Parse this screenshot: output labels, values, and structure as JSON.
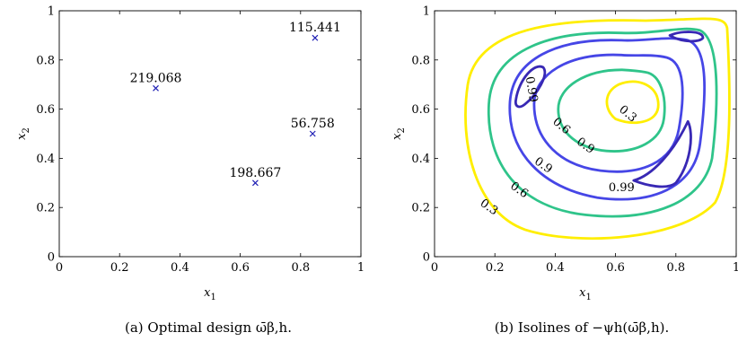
{
  "chart_data": [
    {
      "type": "scatter",
      "title": "",
      "xlabel": "x1",
      "ylabel": "x2",
      "xlim": [
        0,
        1
      ],
      "ylim": [
        0,
        1
      ],
      "xticks": [
        "0",
        "0.2",
        "0.4",
        "0.6",
        "0.8",
        "1"
      ],
      "yticks": [
        "0",
        "0.2",
        "0.4",
        "0.6",
        "0.8",
        "1"
      ],
      "grid": false,
      "marker": "x",
      "marker_color": "#1f1fb4",
      "points": [
        {
          "x": 0.32,
          "y": 0.685,
          "label": "219.068"
        },
        {
          "x": 0.848,
          "y": 0.89,
          "label": "115.441"
        },
        {
          "x": 0.84,
          "y": 0.5,
          "label": "56.758"
        },
        {
          "x": 0.65,
          "y": 0.3,
          "label": "198.667"
        }
      ],
      "caption": "(a) Optimal design ω̄β,h."
    },
    {
      "type": "contour",
      "title": "",
      "xlabel": "x1",
      "ylabel": "x2",
      "xlim": [
        0,
        1
      ],
      "ylim": [
        0,
        1
      ],
      "xticks": [
        "0",
        "0.2",
        "0.4",
        "0.6",
        "0.8",
        "1"
      ],
      "yticks": [
        "0",
        "0.2",
        "0.4",
        "0.6",
        "0.8",
        "1"
      ],
      "grid": false,
      "levels": [
        {
          "value": 0.3,
          "label": "0.3",
          "color": "#ffee00"
        },
        {
          "value": 0.6,
          "label": "0.6",
          "color": "#2fc48a"
        },
        {
          "value": 0.9,
          "label": "0.9",
          "color": "#4646e6"
        },
        {
          "value": 0.99,
          "label": "0.99",
          "color": "#3828b4"
        }
      ],
      "caption": "(b) Isolines of −ψh(ω̄β,h)."
    }
  ],
  "labels": {
    "x_main": "x",
    "x_sub": "1",
    "y_main": "x",
    "y_sub": "2"
  }
}
